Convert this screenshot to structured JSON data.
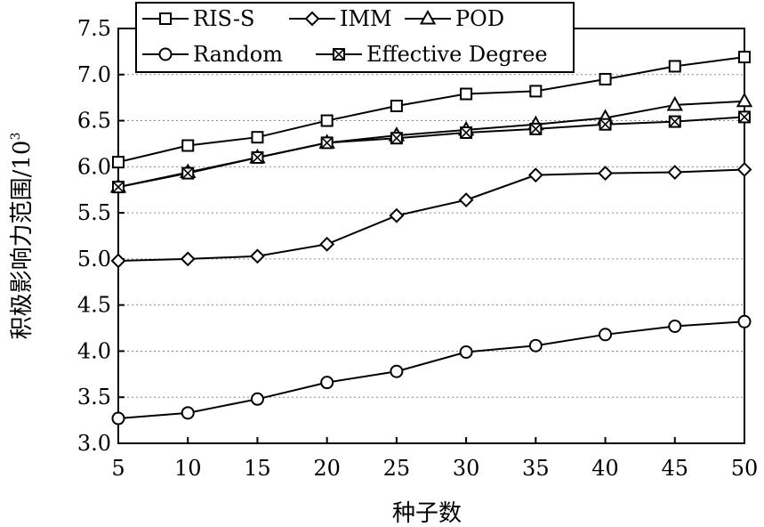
{
  "chart_data": {
    "type": "line",
    "x": [
      5,
      10,
      15,
      20,
      25,
      30,
      35,
      40,
      45,
      50
    ],
    "xlabel": "种子数",
    "ylabel": "积极影响力范围/10",
    "ylabel_sup": "3",
    "xlim": [
      5,
      50
    ],
    "ylim": [
      3.0,
      7.5
    ],
    "xticks": [
      "5",
      "10",
      "15",
      "20",
      "25",
      "30",
      "35",
      "40",
      "45",
      "50"
    ],
    "yticks": [
      "3.0",
      "3.5",
      "4.0",
      "4.5",
      "5.0",
      "5.5",
      "6.0",
      "6.5",
      "7.0",
      "7.5"
    ],
    "grid": "horizontal-dotted",
    "legend_position": "top",
    "series": [
      {
        "name": "RIS-S",
        "marker": "square",
        "values": [
          6.05,
          6.23,
          6.32,
          6.5,
          6.66,
          6.79,
          6.82,
          6.95,
          7.09,
          7.19
        ]
      },
      {
        "name": "IMM",
        "marker": "diamond",
        "values": [
          4.98,
          5.0,
          5.03,
          5.16,
          5.47,
          5.64,
          5.91,
          5.93,
          5.94,
          5.97
        ]
      },
      {
        "name": "POD",
        "marker": "triangle",
        "values": [
          5.78,
          5.94,
          6.1,
          6.26,
          6.34,
          6.4,
          6.46,
          6.53,
          6.67,
          6.71
        ]
      },
      {
        "name": "Random",
        "marker": "circle",
        "values": [
          3.27,
          3.33,
          3.48,
          3.66,
          3.78,
          3.99,
          4.06,
          4.18,
          4.27,
          4.32
        ]
      },
      {
        "name": "Effective Degree",
        "marker": "boxx",
        "values": [
          5.78,
          5.93,
          6.1,
          6.26,
          6.31,
          6.37,
          6.41,
          6.46,
          6.49,
          6.54
        ]
      }
    ]
  }
}
